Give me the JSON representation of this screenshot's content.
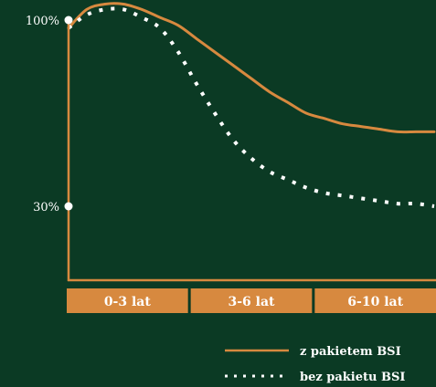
{
  "chart_data": {
    "type": "line",
    "title": "",
    "xlabel": "",
    "ylabel": "",
    "categories": [
      "0-3 lat",
      "3-6 lat",
      "6-10 lat"
    ],
    "yticks": [
      {
        "label": "100%",
        "value": 100
      },
      {
        "label": "30%",
        "value": 30
      }
    ],
    "ylim": [
      0,
      115
    ],
    "xlim": [
      0,
      10
    ],
    "grid": false,
    "legend_position": "bottom-right",
    "series": [
      {
        "name": "z pakietem BSI",
        "style": "solid",
        "color": "#d7893f",
        "x": [
          0,
          0.5,
          1,
          1.5,
          2,
          2.5,
          3,
          3.5,
          4,
          4.5,
          5,
          5.5,
          6,
          6.5,
          7,
          7.5,
          8,
          8.5,
          9,
          9.5,
          10
        ],
        "y": [
          97,
          104,
          106,
          106,
          104,
          101,
          98,
          93,
          88,
          83,
          78,
          73,
          69,
          65,
          63,
          61,
          60,
          59,
          58,
          58,
          58
        ]
      },
      {
        "name": "bez pakietu BSI",
        "style": "dotted",
        "color": "#ffffff",
        "x": [
          0,
          0.5,
          1,
          1.5,
          2,
          2.5,
          3,
          3.5,
          4,
          4.5,
          5,
          5.5,
          6,
          6.5,
          7,
          7.5,
          8,
          8.5,
          9,
          9.5,
          10
        ],
        "y": [
          97,
          102,
          104,
          104,
          101,
          97,
          88,
          76,
          65,
          55,
          48,
          43,
          40,
          37,
          35,
          34,
          33,
          32,
          31,
          31,
          30
        ]
      }
    ]
  },
  "colors": {
    "background": "#0b3a24",
    "accent": "#d7893f",
    "dot": "#ffffff"
  }
}
